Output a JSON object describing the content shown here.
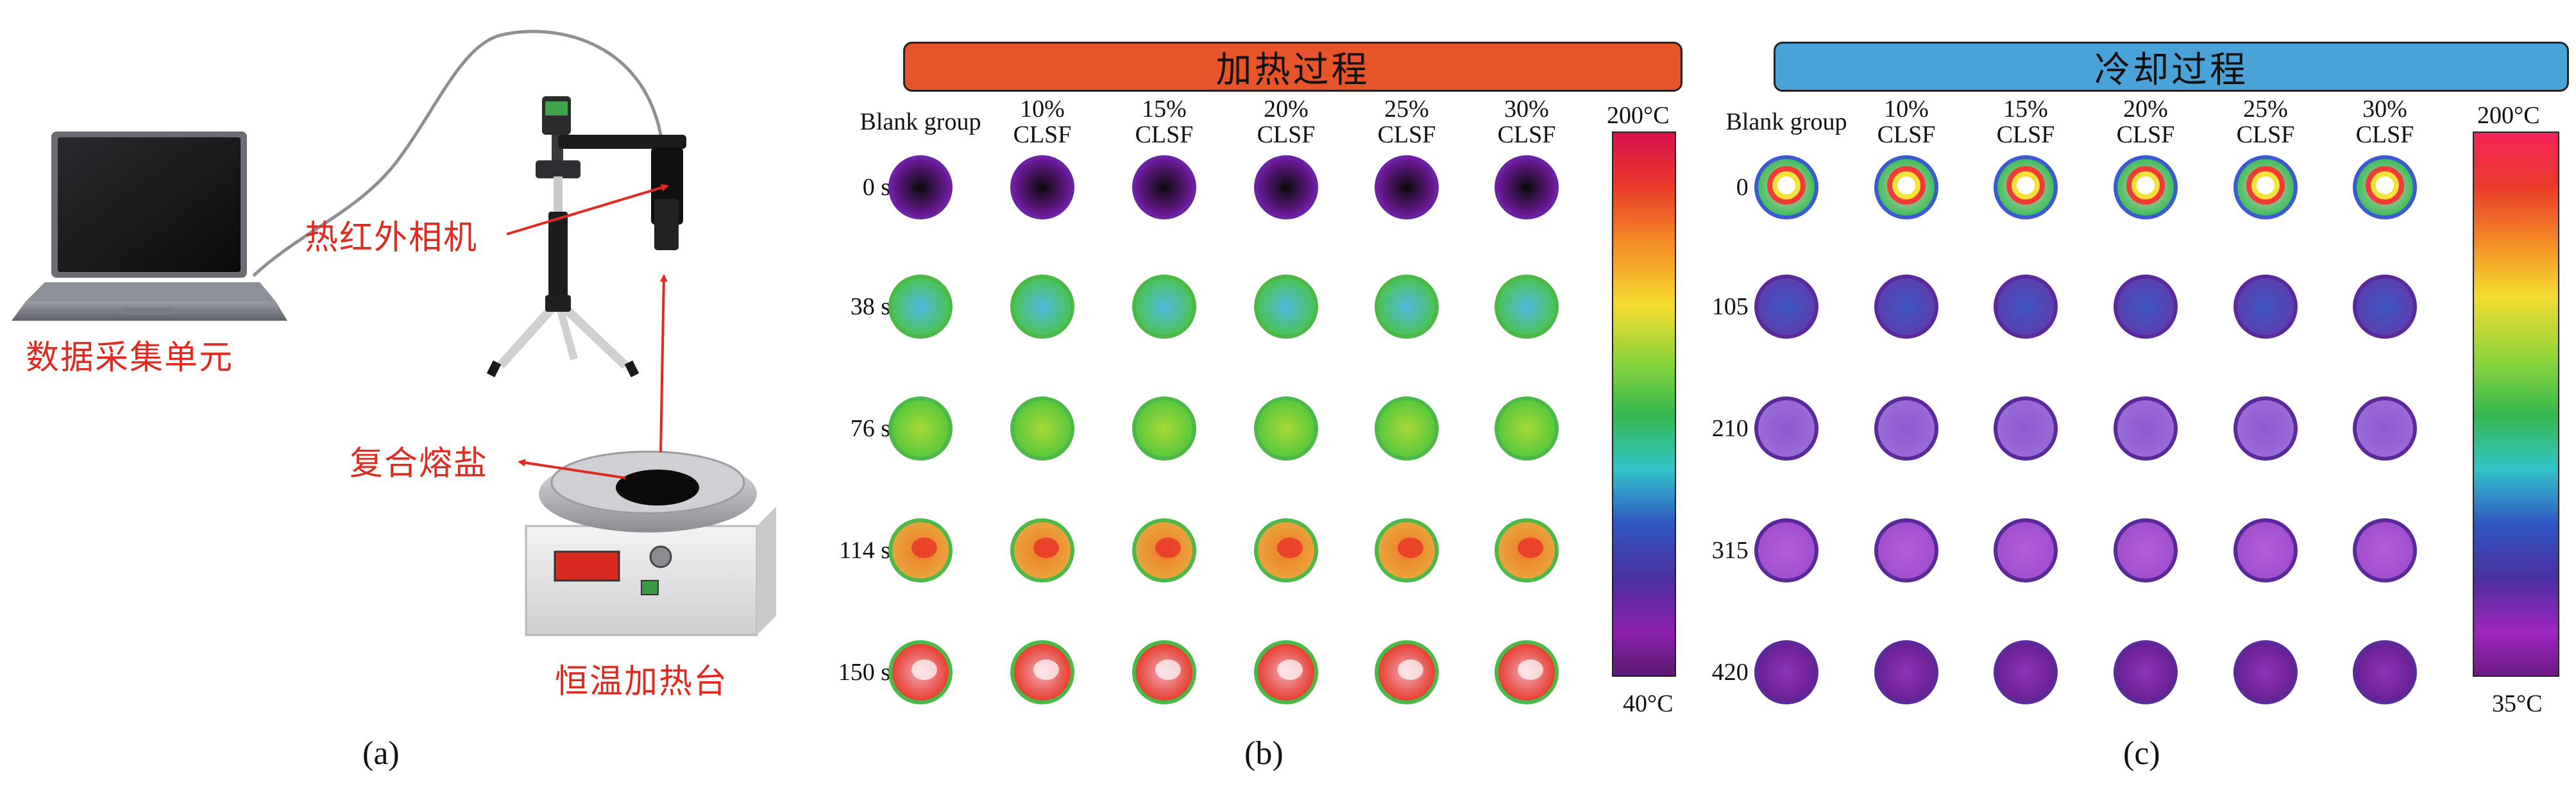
{
  "panel_a": {
    "label": "(a)",
    "annotations": {
      "data_unit": "数据采集单元",
      "ir_camera": "热红外相机",
      "molten_salt": "复合熔盐",
      "heating_stage": "恒温加热台"
    }
  },
  "panel_b": {
    "label": "(b)",
    "banner": "加热过程",
    "banner_color": "#e8542a",
    "columns": [
      {
        "line1": "Blank group",
        "line2": ""
      },
      {
        "line1": "10%",
        "line2": "CLSF"
      },
      {
        "line1": "15%",
        "line2": "CLSF"
      },
      {
        "line1": "20%",
        "line2": "CLSF"
      },
      {
        "line1": "25%",
        "line2": "CLSF"
      },
      {
        "line1": "30%",
        "line2": "CLSF"
      }
    ],
    "rows": [
      "0 s",
      "38 s",
      "76 s",
      "114 s",
      "150 s"
    ],
    "scale_max": "200°C",
    "scale_min": "40°C"
  },
  "panel_c": {
    "label": "(c)",
    "banner": "冷却过程",
    "banner_color": "#4aa3d8",
    "columns": [
      {
        "line1": "Blank group",
        "line2": ""
      },
      {
        "line1": "10%",
        "line2": "CLSF"
      },
      {
        "line1": "15%",
        "line2": "CLSF"
      },
      {
        "line1": "20%",
        "line2": "CLSF"
      },
      {
        "line1": "25%",
        "line2": "CLSF"
      },
      {
        "line1": "30%",
        "line2": "CLSF"
      }
    ],
    "rows": [
      "0 s",
      "105 s",
      "210 s",
      "315 s",
      "420 s"
    ],
    "scale_max": "200°C",
    "scale_min": "35°C"
  },
  "palette": {
    "annotation_red": "#e02a1f",
    "heat_colors": [
      "#111111",
      "#7a1fa2",
      "#2f48c0",
      "#4fc3e8",
      "#5ac83a",
      "#b9e03a",
      "#f0e23a",
      "#f08a2a",
      "#e83c2a",
      "#f4c0c8"
    ]
  }
}
